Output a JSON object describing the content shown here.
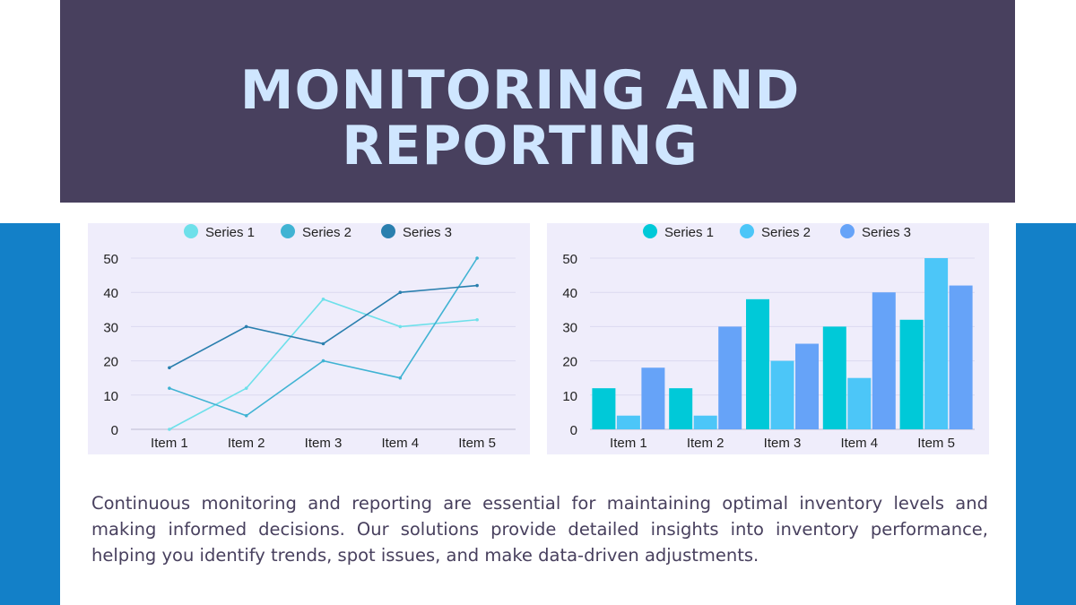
{
  "header": {
    "title_line1": "MONITORING AND",
    "title_line2": "REPORTING"
  },
  "description": "Continuous monitoring and reporting are essential for maintaining optimal inventory levels and making informed decisions. Our solutions provide detailed insights into inventory performance, helping you identify trends, spot issues, and make data-driven adjustments.",
  "colors": {
    "header_bg": "#48405e",
    "title_text": "#cfe6ff",
    "side_band": "#1380c8",
    "panel_bg": "#efedfb",
    "line_series": [
      "#6ee0ea",
      "#40b3d3",
      "#2a7fae"
    ],
    "bar_series": [
      "#00c9d8",
      "#4cc6f8",
      "#66a3f8"
    ]
  },
  "chart_data": [
    {
      "type": "line",
      "categories": [
        "Item 1",
        "Item 2",
        "Item 3",
        "Item 4",
        "Item 5"
      ],
      "series": [
        {
          "name": "Series 1",
          "values": [
            0,
            12,
            38,
            30,
            32
          ]
        },
        {
          "name": "Series 2",
          "values": [
            12,
            4,
            20,
            15,
            50
          ]
        },
        {
          "name": "Series 3",
          "values": [
            18,
            30,
            25,
            40,
            42
          ]
        }
      ],
      "ylim": [
        0,
        50
      ],
      "yticks": [
        0,
        10,
        20,
        30,
        40,
        50
      ],
      "legend": "top",
      "grid": true
    },
    {
      "type": "bar",
      "categories": [
        "Item 1",
        "Item 2",
        "Item 3",
        "Item 4",
        "Item 5"
      ],
      "series": [
        {
          "name": "Series 1",
          "values": [
            12,
            12,
            38,
            30,
            32
          ]
        },
        {
          "name": "Series 2",
          "values": [
            4,
            4,
            20,
            15,
            50
          ]
        },
        {
          "name": "Series 3",
          "values": [
            18,
            30,
            25,
            40,
            42
          ]
        }
      ],
      "ylim": [
        0,
        50
      ],
      "yticks": [
        0,
        10,
        20,
        30,
        40,
        50
      ],
      "legend": "top",
      "grid": true
    }
  ]
}
